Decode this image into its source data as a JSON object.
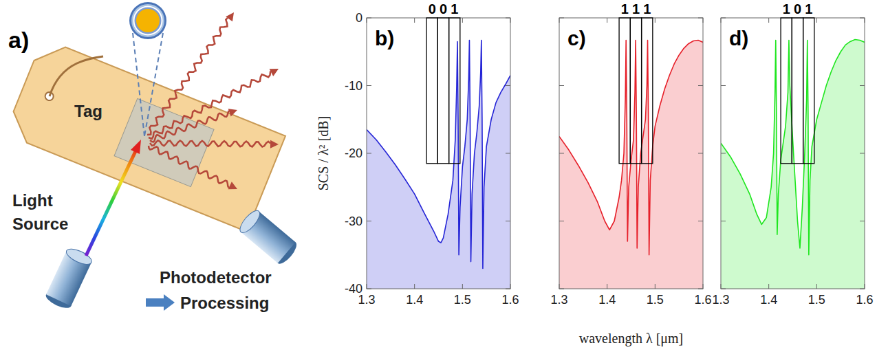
{
  "diagram": {
    "label": "a)",
    "tag": "Tag",
    "source": "Light Source",
    "detector": "Photodetector",
    "output": "Processing"
  },
  "chart_data": [
    {
      "type": "area",
      "label": "b)",
      "color": "#2424d6",
      "y_label": "SCS / λ² [dB]",
      "xlim": [
        1.3,
        1.6
      ],
      "xticks": [
        1.3,
        1.4,
        1.5,
        1.6
      ],
      "ylim": [
        -40,
        0
      ],
      "yticks": [
        -40,
        -30,
        -20,
        -10,
        0
      ],
      "x": [
        1.3,
        1.32,
        1.34,
        1.36,
        1.38,
        1.4,
        1.42,
        1.44,
        1.45,
        1.455,
        1.46,
        1.47,
        1.48,
        1.485,
        1.488,
        1.4895,
        1.491,
        1.4925,
        1.495,
        1.5,
        1.505,
        1.51,
        1.513,
        1.5145,
        1.516,
        1.5175,
        1.52,
        1.525,
        1.53,
        1.535,
        1.538,
        1.5395,
        1.541,
        1.5425,
        1.545,
        1.55,
        1.56,
        1.57,
        1.58,
        1.59,
        1.6
      ],
      "values": [
        -16.5,
        -18,
        -19.8,
        -21.7,
        -23.8,
        -26,
        -28.8,
        -31.5,
        -33,
        -33.2,
        -32.5,
        -29,
        -24,
        -18,
        -10,
        -3.5,
        -15,
        -35,
        -28,
        -22,
        -19,
        -15,
        -9,
        -3.3,
        -15,
        -36,
        -26,
        -20,
        -17,
        -13,
        -8,
        -3.3,
        -15,
        -37,
        -25,
        -19,
        -15,
        -12.5,
        -11,
        -9.8,
        -8.5
      ],
      "bits": [
        {
          "label": "0",
          "xlim": [
            1.425,
            1.4483
          ]
        },
        {
          "label": "0",
          "xlim": [
            1.4483,
            1.4717
          ]
        },
        {
          "label": "1",
          "xlim": [
            1.4717,
            1.495
          ]
        }
      ],
      "bits_ylim": [
        -21.5,
        0
      ]
    },
    {
      "type": "area",
      "label": "c)",
      "color": "#e6202a",
      "x_label": "wavelength λ [μm]",
      "tick_labels": "x",
      "xlim": [
        1.3,
        1.6
      ],
      "xticks": [
        1.3,
        1.4,
        1.5,
        1.6
      ],
      "ylim": [
        -40,
        0
      ],
      "yticks": [
        -40,
        -30,
        -20,
        -10,
        0
      ],
      "x": [
        1.3,
        1.32,
        1.34,
        1.36,
        1.38,
        1.395,
        1.405,
        1.415,
        1.425,
        1.43,
        1.435,
        1.438,
        1.4395,
        1.441,
        1.4425,
        1.445,
        1.45,
        1.455,
        1.458,
        1.4595,
        1.461,
        1.4625,
        1.465,
        1.47,
        1.475,
        1.48,
        1.483,
        1.4845,
        1.486,
        1.4875,
        1.49,
        1.495,
        1.5,
        1.51,
        1.52,
        1.53,
        1.54,
        1.55,
        1.56,
        1.57,
        1.58,
        1.59,
        1.6
      ],
      "values": [
        -17.5,
        -19.5,
        -21.8,
        -24.3,
        -27.2,
        -30,
        -31.3,
        -30,
        -26.5,
        -24,
        -20,
        -12,
        -3.3,
        -14,
        -33,
        -25,
        -21,
        -18,
        -11,
        -3.3,
        -14,
        -34,
        -25,
        -20,
        -17.5,
        -15,
        -10,
        -3.3,
        -14,
        -35,
        -24,
        -19,
        -16,
        -13,
        -10.5,
        -8.5,
        -6.8,
        -5.5,
        -4.5,
        -3.8,
        -3.4,
        -3.3,
        -3.6
      ],
      "bits": [
        {
          "label": "1",
          "xlim": [
            1.425,
            1.4483
          ]
        },
        {
          "label": "1",
          "xlim": [
            1.4483,
            1.4717
          ]
        },
        {
          "label": "1",
          "xlim": [
            1.4717,
            1.495
          ]
        }
      ],
      "bits_ylim": [
        -21.5,
        0
      ]
    },
    {
      "type": "area",
      "label": "d)",
      "color": "#1ee61e",
      "tick_labels": "x",
      "xlim": [
        1.3,
        1.6
      ],
      "xticks": [
        1.3,
        1.4,
        1.5,
        1.6
      ],
      "ylim": [
        -40,
        0
      ],
      "yticks": [
        -40,
        -30,
        -20,
        -10,
        0
      ],
      "x": [
        1.3,
        1.32,
        1.34,
        1.36,
        1.375,
        1.385,
        1.395,
        1.405,
        1.41,
        1.413,
        1.4145,
        1.416,
        1.4175,
        1.42,
        1.425,
        1.43,
        1.435,
        1.44,
        1.442,
        1.444,
        1.45,
        1.455,
        1.46,
        1.465,
        1.47,
        1.475,
        1.479,
        1.4805,
        1.482,
        1.4835,
        1.486,
        1.49,
        1.5,
        1.51,
        1.52,
        1.53,
        1.54,
        1.55,
        1.56,
        1.57,
        1.58,
        1.59,
        1.6
      ],
      "values": [
        -18.5,
        -20.5,
        -23,
        -26,
        -29,
        -30.5,
        -29.5,
        -25,
        -20,
        -11,
        -3.3,
        -14,
        -32,
        -26,
        -21,
        -18.5,
        -16,
        -11,
        -3.3,
        -10,
        -18,
        -24,
        -30,
        -34,
        -28,
        -20,
        -12,
        -3.3,
        -13,
        -35,
        -24,
        -19,
        -15,
        -12.5,
        -10,
        -8,
        -6.3,
        -5,
        -4,
        -3.5,
        -3.2,
        -3.3,
        -3.6
      ],
      "bits": [
        {
          "label": "1",
          "xlim": [
            1.425,
            1.4483
          ]
        },
        {
          "label": "0",
          "xlim": [
            1.4483,
            1.4717
          ]
        },
        {
          "label": "1",
          "xlim": [
            1.4717,
            1.495
          ]
        }
      ],
      "bits_ylim": [
        -21.5,
        0
      ]
    }
  ]
}
